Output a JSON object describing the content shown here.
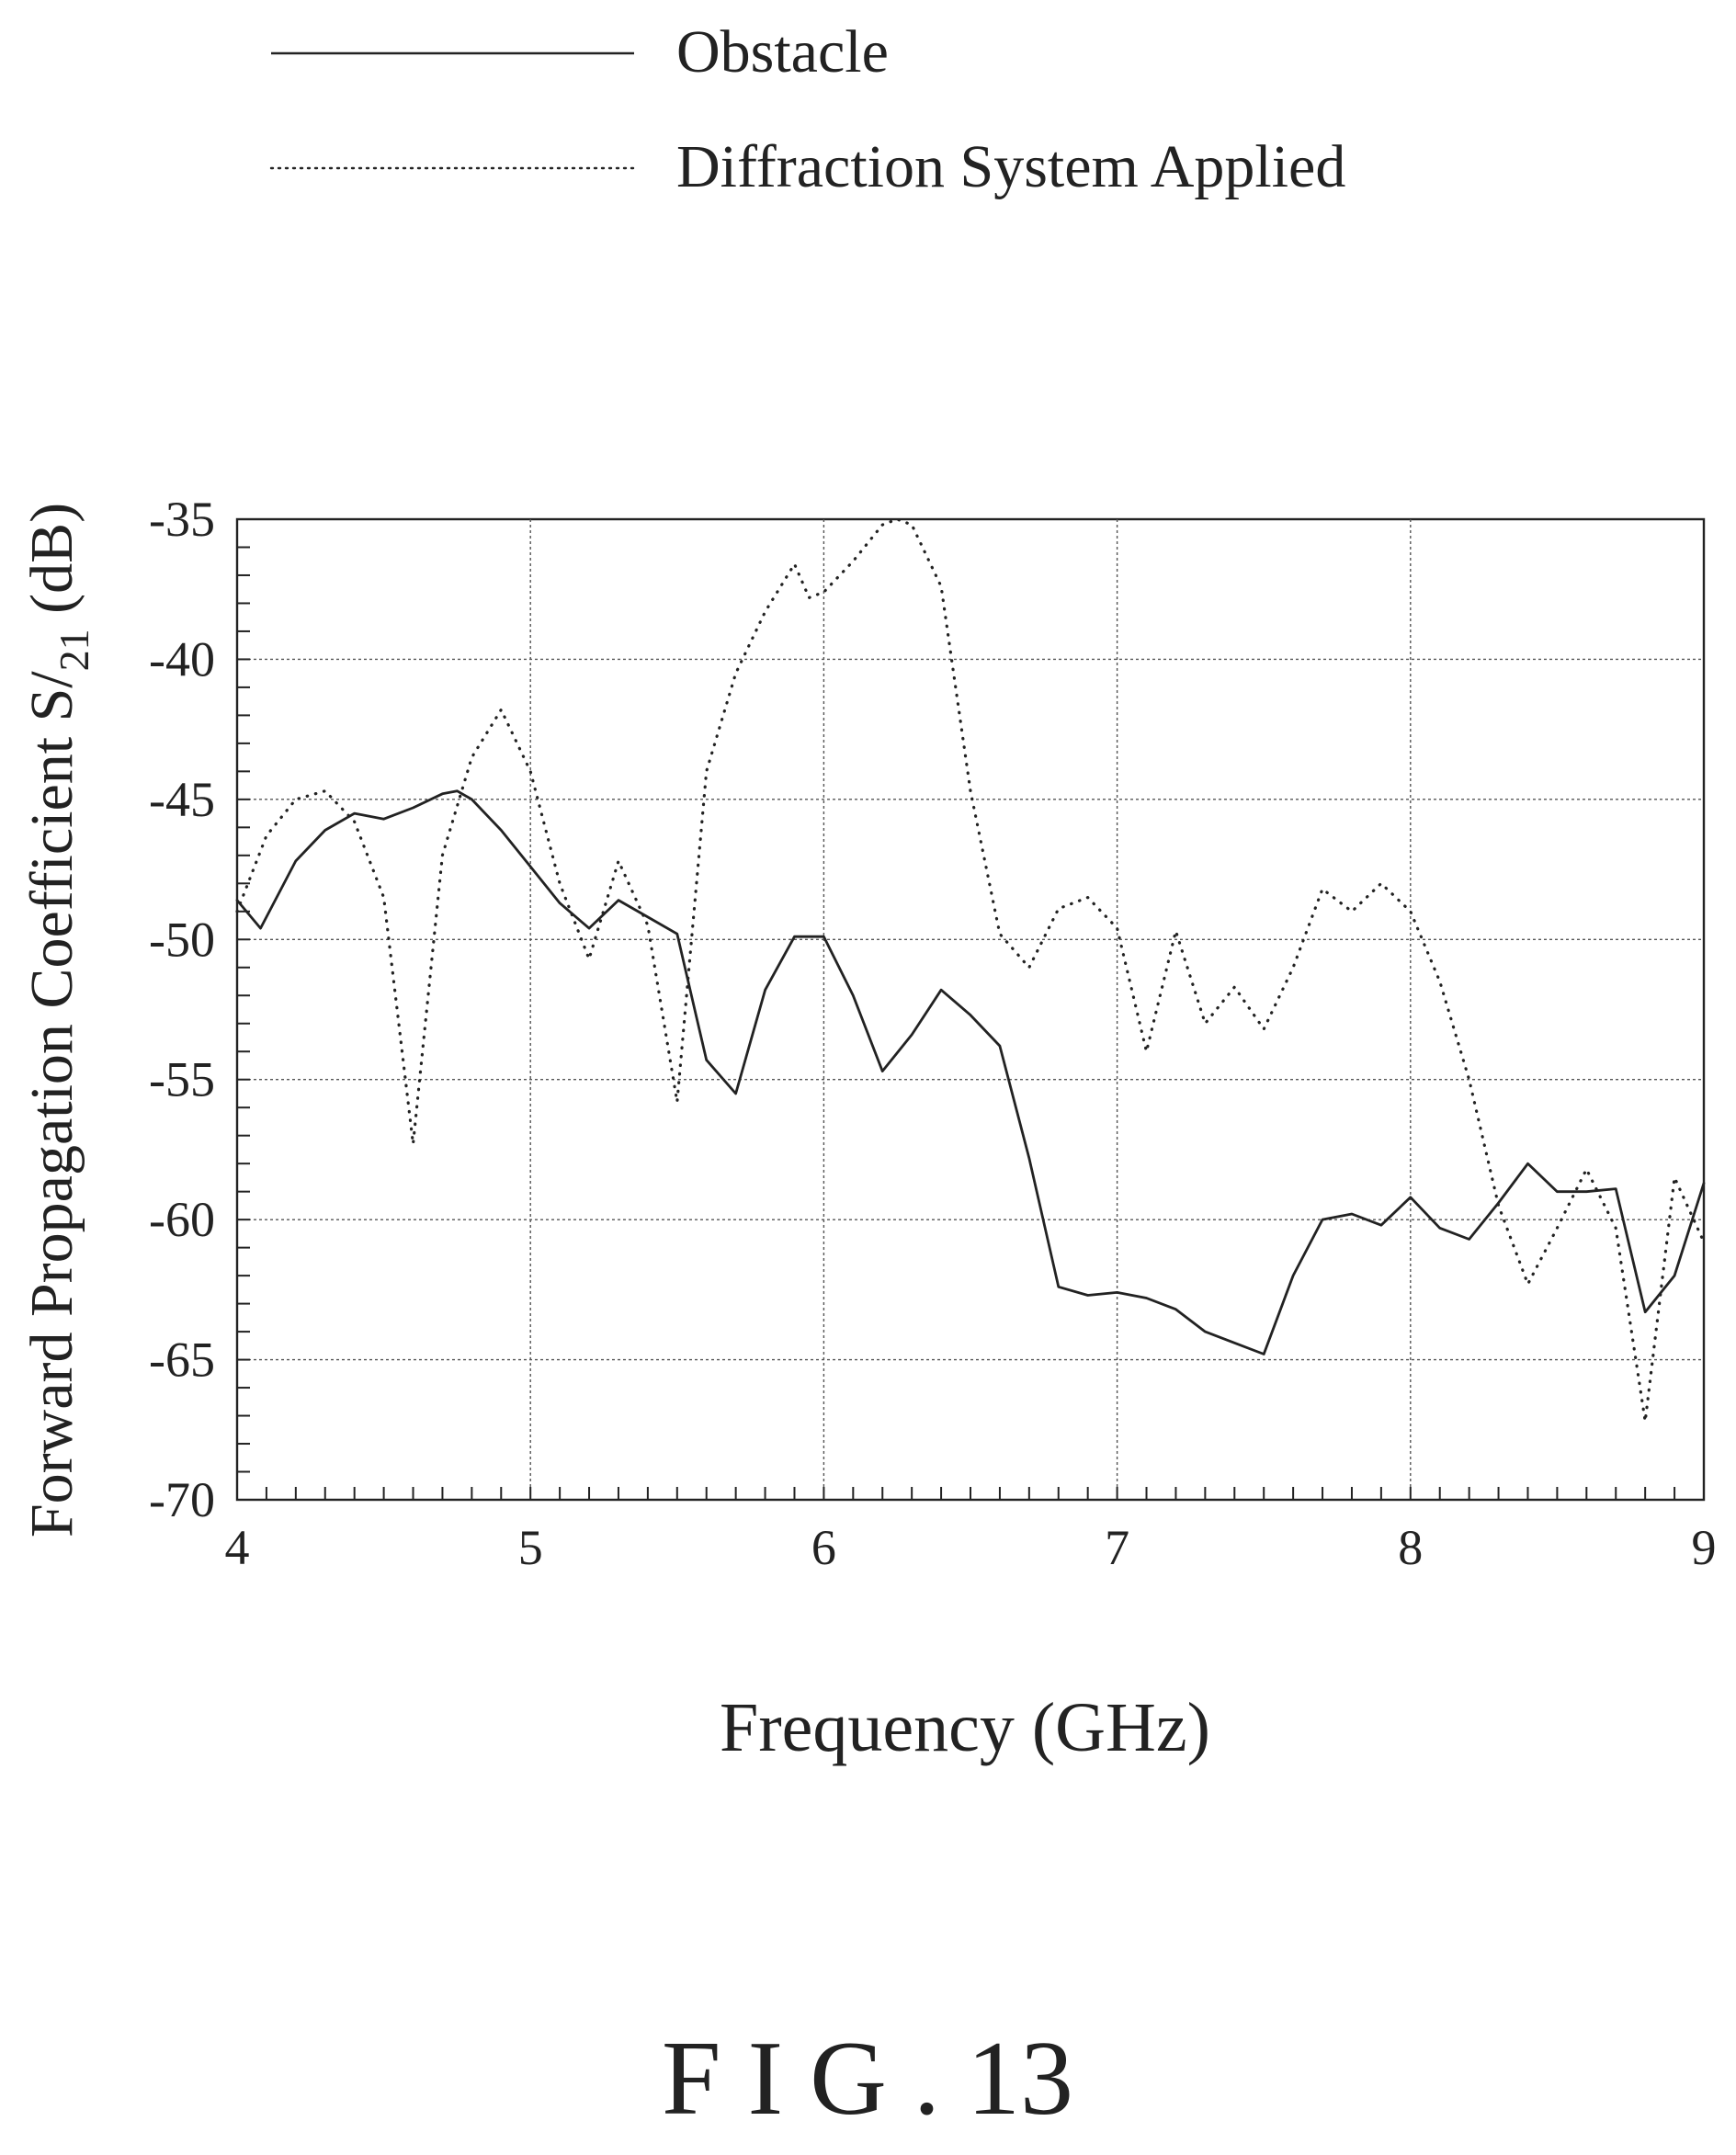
{
  "figure_label": "F I G . 13",
  "legend": {
    "entries": [
      {
        "label": "Obstacle",
        "style": "solid"
      },
      {
        "label": "Diffraction System Applied",
        "style": "dotted"
      }
    ],
    "placement": "top"
  },
  "chart_data": {
    "type": "line",
    "xlabel": "Frequency (GHz)",
    "ylabel": "Forward Propagation Coefficient S/",
    "ylabel_subscript": "21",
    "ylabel_suffix": " (dB)",
    "xlim": [
      4,
      9
    ],
    "ylim": [
      -70,
      -35
    ],
    "xticks": [
      4,
      5,
      6,
      7,
      8,
      9
    ],
    "yticks": [
      -35,
      -40,
      -45,
      -50,
      -55,
      -60,
      -65,
      -70
    ],
    "grid": true,
    "series": [
      {
        "name": "Obstacle",
        "style": "solid",
        "color": "#222222",
        "x": [
          4.0,
          4.08,
          4.2,
          4.3,
          4.4,
          4.5,
          4.6,
          4.7,
          4.75,
          4.8,
          4.9,
          5.0,
          5.1,
          5.2,
          5.3,
          5.4,
          5.5,
          5.6,
          5.7,
          5.8,
          5.9,
          6.0,
          6.1,
          6.2,
          6.3,
          6.4,
          6.5,
          6.6,
          6.7,
          6.8,
          6.9,
          7.0,
          7.1,
          7.2,
          7.3,
          7.4,
          7.5,
          7.6,
          7.7,
          7.8,
          7.9,
          8.0,
          8.1,
          8.2,
          8.3,
          8.4,
          8.5,
          8.6,
          8.7,
          8.8,
          8.9,
          9.0
        ],
        "y": [
          -48.6,
          -49.6,
          -47.2,
          -46.1,
          -45.5,
          -45.7,
          -45.3,
          -44.8,
          -44.7,
          -45.0,
          -46.1,
          -47.4,
          -48.7,
          -49.6,
          -48.6,
          -49.2,
          -49.8,
          -54.3,
          -55.5,
          -51.8,
          -49.9,
          -49.9,
          -52.0,
          -54.7,
          -53.4,
          -51.8,
          -52.7,
          -53.8,
          -57.8,
          -62.4,
          -62.7,
          -62.6,
          -62.8,
          -63.2,
          -64.0,
          -64.4,
          -64.8,
          -62.0,
          -60.0,
          -59.8,
          -60.2,
          -59.2,
          -60.3,
          -60.7,
          -59.4,
          -58.0,
          -59.0,
          -59.0,
          -58.9,
          -63.3,
          -62.0,
          -58.7
        ]
      },
      {
        "name": "Diffraction System Applied",
        "style": "dotted",
        "color": "#222222",
        "x": [
          4.0,
          4.1,
          4.2,
          4.3,
          4.4,
          4.5,
          4.6,
          4.7,
          4.8,
          4.9,
          5.0,
          5.1,
          5.2,
          5.3,
          5.4,
          5.5,
          5.6,
          5.7,
          5.8,
          5.9,
          5.95,
          6.0,
          6.1,
          6.2,
          6.25,
          6.3,
          6.4,
          6.5,
          6.6,
          6.7,
          6.8,
          6.9,
          7.0,
          7.1,
          7.2,
          7.3,
          7.4,
          7.5,
          7.6,
          7.7,
          7.8,
          7.9,
          8.0,
          8.1,
          8.2,
          8.3,
          8.4,
          8.5,
          8.6,
          8.7,
          8.8,
          8.9,
          9.0
        ],
        "y": [
          -49.0,
          -46.3,
          -45.0,
          -44.7,
          -45.8,
          -48.5,
          -57.3,
          -47.0,
          -43.5,
          -41.8,
          -44.0,
          -48.0,
          -50.7,
          -47.2,
          -49.5,
          -55.8,
          -44.0,
          -40.5,
          -38.3,
          -36.6,
          -37.8,
          -37.6,
          -36.5,
          -35.2,
          -35.0,
          -35.2,
          -37.4,
          -44.7,
          -49.8,
          -51.0,
          -48.9,
          -48.5,
          -49.6,
          -54.0,
          -49.7,
          -53.0,
          -51.7,
          -53.2,
          -51.0,
          -48.2,
          -49.0,
          -48.0,
          -49.0,
          -51.5,
          -55.0,
          -59.5,
          -62.3,
          -60.3,
          -58.2,
          -60.3,
          -67.2,
          -58.5,
          -60.8
        ]
      }
    ]
  }
}
